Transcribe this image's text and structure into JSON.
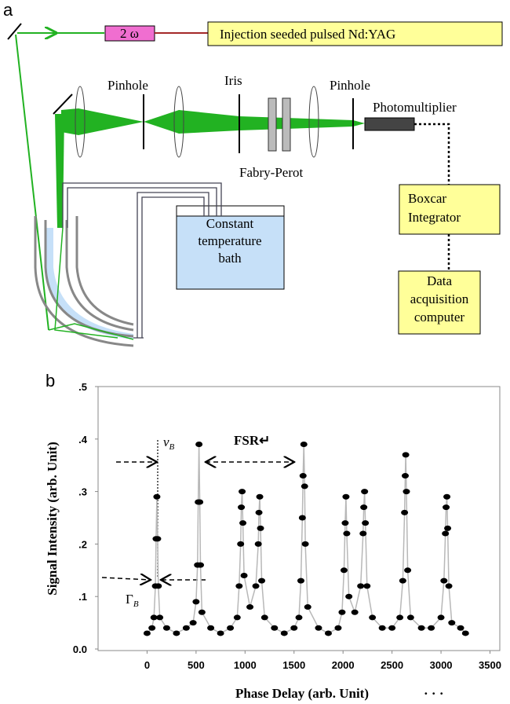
{
  "panel_labels": [
    "a",
    "b"
  ],
  "diagram": {
    "doubler": "2 ω",
    "laser": "Injection seeded pulsed Nd:YAG",
    "pinhole_1": "Pinhole",
    "iris": "Iris",
    "pinhole_2": "Pinhole",
    "detector": "Photomultiplier",
    "etalon": "Fabry-Perot",
    "bath": [
      "Constant",
      "temperature",
      "bath"
    ],
    "boxcar": [
      "Boxcar",
      "Integrator"
    ],
    "computer": [
      "Data",
      "acquisition",
      "computer"
    ]
  },
  "chart_data": {
    "type": "scatter",
    "line": true,
    "color": "#000000",
    "line_color": "#b8b8b8",
    "xlabel": "Phase Delay (arb. Unit)",
    "ylabel": "Signal Intensity (arb. Unit)",
    "annotations": {
      "nu": {
        "symbol": "ν",
        "subscript": "B"
      },
      "fsr": "FSR↵",
      "gamma": {
        "symbol": "Γ",
        "subscript": "B"
      }
    },
    "xlim": [
      -500,
      3600
    ],
    "ylim": [
      0,
      0.5
    ],
    "xticks": [
      0,
      500,
      1000,
      1500,
      2000,
      2500,
      3000,
      3500
    ],
    "yticks": [
      {
        "value": 0,
        "label": "0.0"
      },
      {
        "value": 0.1,
        "label": ".1"
      },
      {
        "value": 0.2,
        "label": ".2"
      },
      {
        "value": 0.3,
        "label": ".3"
      },
      {
        "value": 0.4,
        "label": ".4"
      },
      {
        "value": 0.5,
        "label": ".5"
      }
    ],
    "x": [
      0,
      50,
      70,
      85,
      92,
      100,
      108,
      115,
      130,
      200,
      300,
      400,
      470,
      500,
      515,
      522,
      530,
      538,
      545,
      560,
      650,
      750,
      850,
      920,
      940,
      955,
      962,
      970,
      978,
      990,
      1050,
      1110,
      1135,
      1142,
      1150,
      1158,
      1170,
      1200,
      1300,
      1400,
      1500,
      1550,
      1570,
      1585,
      1592,
      1600,
      1608,
      1615,
      1640,
      1750,
      1850,
      1950,
      1990,
      2010,
      2022,
      2030,
      2038,
      2060,
      2120,
      2180,
      2205,
      2212,
      2220,
      2228,
      2245,
      2300,
      2400,
      2500,
      2580,
      2610,
      2628,
      2635,
      2640,
      2647,
      2660,
      2690,
      2800,
      2900,
      3000,
      3030,
      3045,
      3052,
      3060,
      3068,
      3080,
      3110,
      3200,
      3250
    ],
    "values": [
      0.03,
      0.04,
      0.06,
      0.12,
      0.21,
      0.29,
      0.21,
      0.12,
      0.06,
      0.04,
      0.03,
      0.04,
      0.05,
      0.09,
      0.16,
      0.28,
      0.39,
      0.28,
      0.16,
      0.07,
      0.04,
      0.03,
      0.04,
      0.06,
      0.12,
      0.2,
      0.27,
      0.3,
      0.24,
      0.14,
      0.08,
      0.12,
      0.2,
      0.26,
      0.29,
      0.23,
      0.13,
      0.06,
      0.04,
      0.03,
      0.04,
      0.06,
      0.13,
      0.25,
      0.33,
      0.39,
      0.31,
      0.2,
      0.08,
      0.04,
      0.03,
      0.04,
      0.07,
      0.15,
      0.24,
      0.29,
      0.22,
      0.1,
      0.07,
      0.12,
      0.22,
      0.27,
      0.3,
      0.24,
      0.12,
      0.06,
      0.04,
      0.04,
      0.06,
      0.13,
      0.26,
      0.33,
      0.37,
      0.3,
      0.15,
      0.06,
      0.04,
      0.04,
      0.06,
      0.13,
      0.22,
      0.27,
      0.29,
      0.23,
      0.12,
      0.05,
      0.04,
      0.03
    ]
  }
}
